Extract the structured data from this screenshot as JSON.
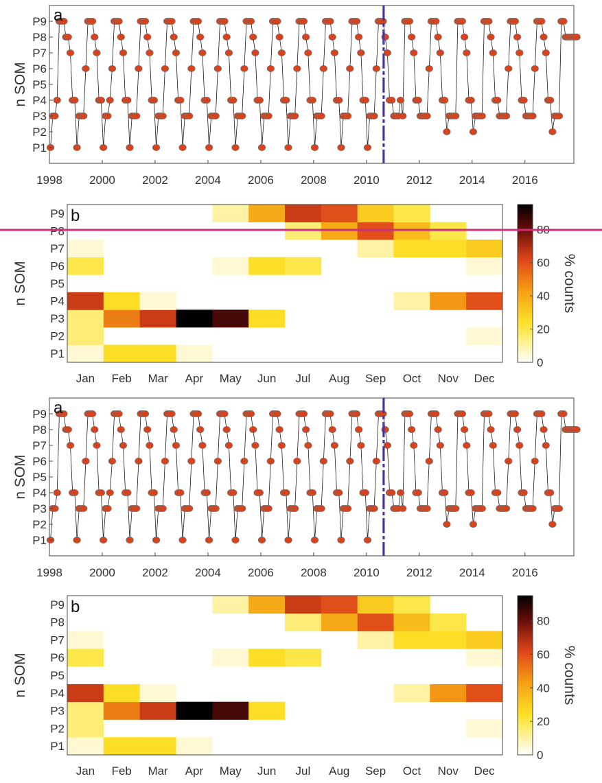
{
  "chart_data": [
    {
      "id": "top-a",
      "panel_label": "a",
      "type": "line",
      "ylabel": "n SOM",
      "y_categories": [
        "P1",
        "P2",
        "P3",
        "P4",
        "P5",
        "P6",
        "P7",
        "P8",
        "P9"
      ],
      "x_ticks": [
        "1998",
        "2000",
        "2002",
        "2004",
        "2006",
        "2008",
        "2010",
        "2012",
        "2014",
        "2016"
      ],
      "xlim": [
        1998.0,
        2017.85
      ],
      "change_year": 2010.65,
      "years": [
        1998,
        1999,
        2000,
        2001,
        2002,
        2003,
        2004,
        2005,
        2006,
        2007,
        2008,
        2009,
        2010,
        2011,
        2012,
        2013,
        2014,
        2015,
        2016,
        2017
      ],
      "monthly_patterns": [
        [
          1,
          3,
          3,
          4,
          9,
          9,
          9,
          8,
          8,
          7,
          4,
          4
        ],
        [
          1,
          3,
          3,
          3,
          6,
          9,
          9,
          9,
          8,
          7,
          4,
          4
        ],
        [
          1,
          3,
          3,
          4,
          6,
          9,
          9,
          9,
          8,
          7,
          4,
          4
        ],
        [
          1,
          3,
          3,
          3,
          6,
          9,
          9,
          9,
          8,
          7,
          4,
          4
        ],
        [
          1,
          3,
          3,
          3,
          6,
          9,
          9,
          9,
          8,
          7,
          4,
          4
        ],
        [
          1,
          3,
          3,
          3,
          6,
          9,
          9,
          9,
          8,
          7,
          4,
          4
        ],
        [
          1,
          3,
          3,
          3,
          6,
          9,
          9,
          9,
          8,
          7,
          4,
          4
        ],
        [
          1,
          3,
          3,
          3,
          6,
          9,
          9,
          9,
          8,
          7,
          4,
          4
        ],
        [
          1,
          3,
          3,
          3,
          6,
          9,
          9,
          9,
          8,
          7,
          4,
          4
        ],
        [
          1,
          3,
          3,
          3,
          6,
          9,
          9,
          9,
          8,
          7,
          4,
          4
        ],
        [
          1,
          3,
          3,
          3,
          6,
          9,
          9,
          9,
          8,
          7,
          4,
          4
        ],
        [
          1,
          3,
          3,
          3,
          6,
          9,
          9,
          9,
          8,
          7,
          4,
          4
        ],
        [
          1,
          3,
          3,
          3,
          6,
          9,
          9,
          9,
          8,
          7,
          4,
          4
        ],
        [
          3,
          3,
          3,
          4,
          3,
          9,
          9,
          9,
          8,
          7,
          4,
          4
        ],
        [
          3,
          3,
          3,
          3,
          6,
          9,
          9,
          9,
          8,
          7,
          4,
          4
        ],
        [
          2,
          3,
          3,
          3,
          3,
          9,
          9,
          9,
          8,
          7,
          4,
          4
        ],
        [
          2,
          3,
          3,
          3,
          3,
          9,
          9,
          9,
          8,
          7,
          4,
          4
        ],
        [
          3,
          3,
          3,
          3,
          6,
          9,
          9,
          9,
          8,
          7,
          4,
          4
        ],
        [
          3,
          3,
          3,
          3,
          6,
          9,
          9,
          9,
          8,
          7,
          4,
          4
        ],
        [
          2,
          3,
          3,
          3,
          9,
          9,
          8,
          8,
          8,
          8,
          8,
          8
        ]
      ]
    },
    {
      "id": "top-b",
      "panel_label": "b",
      "type": "heatmap",
      "ylabel": "n SOM",
      "colorbar_label": "% counts",
      "colorbar_ticks": [
        0,
        20,
        40,
        60,
        80
      ],
      "zlim": [
        0,
        95
      ],
      "x_categories": [
        "Jan",
        "Feb",
        "Mar",
        "Apr",
        "May",
        "Jun",
        "Jul",
        "Aug",
        "Sep",
        "Oct",
        "Nov",
        "Dec"
      ],
      "y_categories": [
        "P1",
        "P2",
        "P3",
        "P4",
        "P5",
        "P6",
        "P7",
        "P8",
        "P9"
      ],
      "values": [
        [
          5,
          25,
          25,
          5,
          0,
          0,
          0,
          0,
          0,
          0,
          0,
          0
        ],
        [
          15,
          0,
          0,
          0,
          0,
          0,
          0,
          0,
          0,
          0,
          0,
          5
        ],
        [
          15,
          50,
          65,
          95,
          85,
          25,
          0,
          0,
          0,
          0,
          0,
          0
        ],
        [
          65,
          25,
          5,
          0,
          0,
          0,
          0,
          0,
          0,
          10,
          45,
          60
        ],
        [
          0,
          0,
          0,
          0,
          0,
          0,
          0,
          0,
          0,
          0,
          0,
          0
        ],
        [
          20,
          0,
          0,
          0,
          5,
          25,
          20,
          0,
          0,
          0,
          0,
          5
        ],
        [
          5,
          0,
          0,
          0,
          0,
          0,
          0,
          0,
          10,
          25,
          25,
          30
        ],
        [
          0,
          0,
          0,
          0,
          0,
          0,
          15,
          40,
          60,
          35,
          20,
          0
        ],
        [
          0,
          0,
          0,
          0,
          10,
          40,
          65,
          60,
          30,
          20,
          0,
          0
        ]
      ]
    },
    {
      "id": "bottom-a",
      "panel_label": "a",
      "type": "line",
      "ylabel": "n SOM",
      "y_categories": [
        "P1",
        "P2",
        "P3",
        "P4",
        "P5",
        "P6",
        "P7",
        "P8",
        "P9"
      ],
      "x_ticks": [
        "1998",
        "2000",
        "2002",
        "2004",
        "2006",
        "2008",
        "2010",
        "2012",
        "2014",
        "2016"
      ],
      "xlim": [
        1998.0,
        2017.85
      ],
      "change_year": 2010.65,
      "years": [
        1998,
        1999,
        2000,
        2001,
        2002,
        2003,
        2004,
        2005,
        2006,
        2007,
        2008,
        2009,
        2010,
        2011,
        2012,
        2013,
        2014,
        2015,
        2016,
        2017
      ],
      "monthly_patterns": [
        [
          1,
          3,
          3,
          4,
          9,
          9,
          9,
          8,
          8,
          7,
          4,
          4
        ],
        [
          1,
          3,
          3,
          3,
          6,
          9,
          9,
          9,
          8,
          7,
          4,
          4
        ],
        [
          1,
          3,
          3,
          4,
          6,
          9,
          9,
          9,
          8,
          7,
          4,
          4
        ],
        [
          1,
          3,
          3,
          3,
          6,
          9,
          9,
          9,
          8,
          7,
          4,
          4
        ],
        [
          1,
          3,
          3,
          3,
          6,
          9,
          9,
          9,
          8,
          7,
          4,
          4
        ],
        [
          1,
          3,
          3,
          3,
          6,
          9,
          9,
          9,
          8,
          7,
          4,
          4
        ],
        [
          1,
          3,
          3,
          3,
          6,
          9,
          9,
          9,
          8,
          7,
          4,
          4
        ],
        [
          1,
          3,
          3,
          3,
          6,
          9,
          9,
          9,
          8,
          7,
          4,
          4
        ],
        [
          1,
          3,
          3,
          3,
          6,
          9,
          9,
          9,
          8,
          7,
          4,
          4
        ],
        [
          1,
          3,
          3,
          3,
          6,
          9,
          9,
          9,
          8,
          7,
          4,
          4
        ],
        [
          1,
          3,
          3,
          3,
          6,
          9,
          9,
          9,
          8,
          7,
          4,
          4
        ],
        [
          1,
          3,
          3,
          3,
          6,
          9,
          9,
          9,
          8,
          7,
          4,
          4
        ],
        [
          1,
          3,
          3,
          3,
          6,
          9,
          9,
          9,
          8,
          7,
          4,
          4
        ],
        [
          3,
          3,
          3,
          4,
          3,
          9,
          9,
          9,
          8,
          7,
          4,
          4
        ],
        [
          3,
          3,
          3,
          3,
          6,
          9,
          9,
          9,
          8,
          7,
          4,
          4
        ],
        [
          2,
          3,
          3,
          3,
          3,
          9,
          9,
          9,
          8,
          7,
          4,
          4
        ],
        [
          2,
          3,
          3,
          3,
          3,
          9,
          9,
          9,
          8,
          7,
          4,
          4
        ],
        [
          3,
          3,
          3,
          3,
          6,
          9,
          9,
          9,
          8,
          7,
          4,
          4
        ],
        [
          3,
          3,
          3,
          3,
          6,
          9,
          9,
          9,
          8,
          7,
          4,
          4
        ],
        [
          2,
          3,
          3,
          3,
          9,
          9,
          8,
          8,
          8,
          8,
          8,
          8
        ]
      ]
    },
    {
      "id": "bottom-b",
      "panel_label": "b",
      "type": "heatmap",
      "ylabel": "n SOM",
      "colorbar_label": "% counts",
      "colorbar_ticks": [
        0,
        20,
        40,
        60,
        80
      ],
      "zlim": [
        0,
        95
      ],
      "x_categories": [
        "Jan",
        "Feb",
        "Mar",
        "Apr",
        "May",
        "Jun",
        "Jul",
        "Aug",
        "Sep",
        "Oct",
        "Nov",
        "Dec"
      ],
      "y_categories": [
        "P1",
        "P2",
        "P3",
        "P4",
        "P5",
        "P6",
        "P7",
        "P8",
        "P9"
      ],
      "values": [
        [
          5,
          25,
          25,
          5,
          0,
          0,
          0,
          0,
          0,
          0,
          0,
          0
        ],
        [
          15,
          0,
          0,
          0,
          0,
          0,
          0,
          0,
          0,
          0,
          0,
          5
        ],
        [
          15,
          50,
          65,
          95,
          85,
          25,
          0,
          0,
          0,
          0,
          0,
          0
        ],
        [
          65,
          25,
          5,
          0,
          0,
          0,
          0,
          0,
          0,
          10,
          45,
          60
        ],
        [
          0,
          0,
          0,
          0,
          0,
          0,
          0,
          0,
          0,
          0,
          0,
          0
        ],
        [
          20,
          0,
          0,
          0,
          5,
          25,
          20,
          0,
          0,
          0,
          0,
          5
        ],
        [
          5,
          0,
          0,
          0,
          0,
          0,
          0,
          0,
          10,
          25,
          25,
          30
        ],
        [
          0,
          0,
          0,
          0,
          0,
          0,
          15,
          40,
          60,
          35,
          20,
          0
        ],
        [
          0,
          0,
          0,
          0,
          10,
          40,
          65,
          60,
          30,
          20,
          0,
          0
        ]
      ]
    }
  ],
  "colors": {
    "marker_fill": "#d8431b",
    "marker_edge": "#6e6e6e",
    "trace_line": "#1a1a1a",
    "change_line": "#5030a8",
    "overlay_line": "#c8307a",
    "axis": "#444444"
  }
}
